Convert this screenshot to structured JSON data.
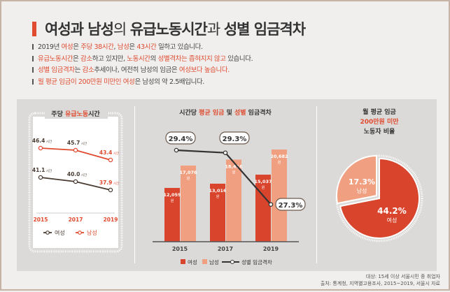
{
  "header": {
    "title_parts": [
      "여성과 남성",
      "의 ",
      "유급노동시간",
      "과 ",
      "성별 임금격차"
    ]
  },
  "bullets": [
    [
      "2019년 ",
      "여성",
      "은 ",
      "주당 38시간",
      ", ",
      "남성",
      "은 ",
      "43시간",
      " 일하고 있습니다."
    ],
    [
      "유급노동시간",
      "은 ",
      "감소",
      "하고 있지만, ",
      "노동시간",
      "의 ",
      "성별격차는  좁혀지지 않고",
      " 있습니다."
    ],
    [
      "성별 임금격차",
      "는 ",
      "감소",
      "추세이나, 여전히 남성의 임금은 ",
      "여성보다 높습니다.",
      "",
      "",
      " "
    ],
    [
      "월 평균 임금이 200만원 미만인 여성",
      "은 남성의 약 2.5배입니다.",
      "",
      "",
      "",
      "",
      "",
      ""
    ]
  ],
  "colors": {
    "accent": "#e04a2f",
    "women_bar": "#d9442c",
    "men_bar": "#f0a080",
    "women_line": "#4a3c32",
    "men_line": "#e04a2f",
    "gap_line": "#333333"
  },
  "chart_data": [
    {
      "type": "line",
      "title_parts": [
        "주당 ",
        "유급노동",
        "시간"
      ],
      "categories": [
        "2015",
        "2017",
        "2019"
      ],
      "unit": "시간",
      "series": [
        {
          "name": "여성",
          "values": [
            41.1,
            40.0,
            37.9
          ]
        },
        {
          "name": "남성",
          "values": [
            46.4,
            45.7,
            43.4
          ]
        }
      ],
      "legend": "bottom"
    },
    {
      "type": "bar",
      "title_parts": [
        "시간당 ",
        "평균 임금",
        " 및 ",
        "성별",
        " 임금격차"
      ],
      "categories": [
        "2015",
        "2017",
        "2019"
      ],
      "unit": "원",
      "series": [
        {
          "name": "여성",
          "values": [
            12059,
            13016,
            15037
          ],
          "labels": [
            "12,059",
            "13,016",
            "15,037"
          ]
        },
        {
          "name": "남성",
          "values": [
            17076,
            18416,
            20682
          ],
          "labels": [
            "17,076",
            "18,416",
            "20,682"
          ]
        }
      ],
      "line_series": {
        "name": "성별 임금격차",
        "values": [
          29.4,
          29.3,
          27.3
        ],
        "labels": [
          "29.4%",
          "29.3%",
          "27.3%"
        ]
      },
      "legend": "bottom"
    },
    {
      "type": "pie",
      "title_lines": [
        "월 평균 임금",
        "200만원 미만",
        "노동자 비율"
      ],
      "slices": [
        {
          "name": "여성",
          "value": 44.2,
          "label": "44.2%"
        },
        {
          "name": "남성",
          "value": 17.3,
          "label": "17.3%"
        }
      ]
    }
  ],
  "footer": [
    "대상: 15세 이상 서울시민 중 취업자",
    "출처: 통계청, 지역별고용조사, 2015~2019, 서울시 자료"
  ]
}
